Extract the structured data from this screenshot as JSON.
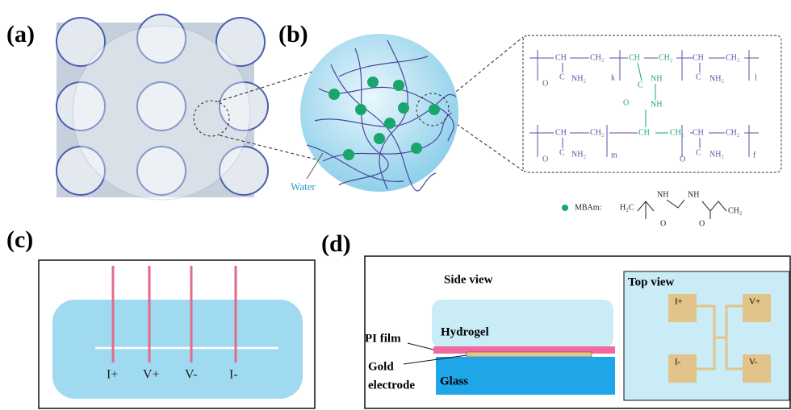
{
  "panels": {
    "a": {
      "label": "(a)"
    },
    "b": {
      "label": "(b)",
      "water": "Water"
    },
    "chemistry": {
      "texts": [
        "CH",
        "CH₂",
        "CH",
        "CH₂",
        "CH",
        "CH₂",
        "C",
        "O",
        "NH₂",
        "k",
        "C",
        "O",
        "NH",
        "NH",
        "C",
        "NH₂",
        "l",
        "CH",
        "CH₂",
        "CH",
        "CH₂",
        "CH",
        "CH₂",
        "C",
        "O",
        "NH₂",
        "m",
        "C",
        "O",
        "NH₂",
        "f"
      ],
      "legend": [
        "MBAm:",
        "H₂C",
        "NH",
        "NH",
        "O",
        "O",
        "CH₂"
      ]
    },
    "c": {
      "label": "(c)",
      "electrodes": [
        "I+",
        "V+",
        "V-",
        "I-"
      ]
    },
    "d": {
      "label": "(d)",
      "side_view": "Side view",
      "hydrogel": "Hydrogel",
      "pi_film": "PI film",
      "gold": "Gold",
      "electrode": "electrode",
      "glass": "Glass",
      "top_view": "Top view",
      "pads": [
        "I+",
        "V+",
        "I-",
        "V-"
      ]
    }
  }
}
